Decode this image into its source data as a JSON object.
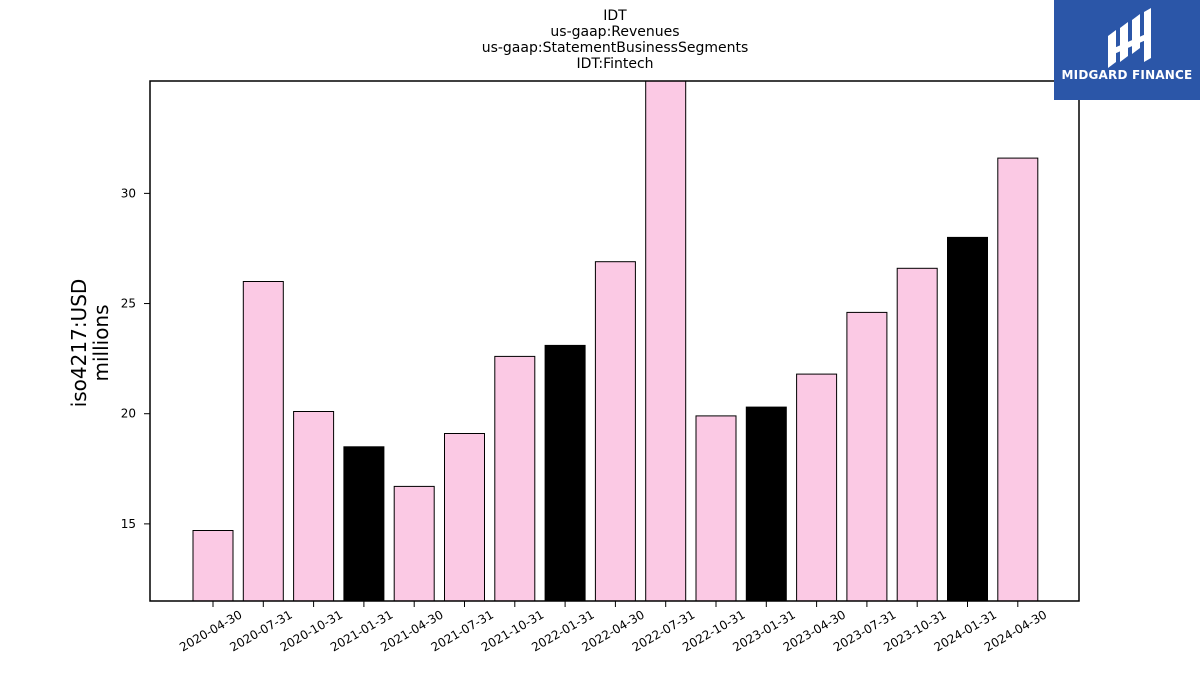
{
  "logo": {
    "text": "MIDGARD FINANCE"
  },
  "chart_data": {
    "type": "bar",
    "title_lines": [
      "IDT",
      "us-gaap:Revenues",
      "us-gaap:StatementBusinessSegments",
      "IDT:Fintech"
    ],
    "ylabel_lines": [
      "iso4217:USD",
      "millions"
    ],
    "xlabel": "",
    "ylim": [
      11.5,
      35.1
    ],
    "yticks": [
      15,
      20,
      25,
      30
    ],
    "grid": false,
    "categories": [
      "2020-04-30",
      "2020-07-31",
      "2020-10-31",
      "2021-01-31",
      "2021-04-30",
      "2021-07-31",
      "2021-10-31",
      "2022-01-31",
      "2022-04-30",
      "2022-07-31",
      "2022-10-31",
      "2023-01-31",
      "2023-04-30",
      "2023-07-31",
      "2023-10-31",
      "2024-01-31",
      "2024-04-30"
    ],
    "values": [
      14.7,
      26.0,
      20.1,
      18.5,
      16.7,
      19.1,
      22.6,
      23.1,
      26.9,
      35.1,
      19.9,
      20.3,
      21.8,
      24.6,
      26.6,
      28.0,
      31.6
    ],
    "colors": [
      "#fbc9e4",
      "#fbc9e4",
      "#fbc9e4",
      "#000000",
      "#fbc9e4",
      "#fbc9e4",
      "#fbc9e4",
      "#000000",
      "#fbc9e4",
      "#fbc9e4",
      "#fbc9e4",
      "#000000",
      "#fbc9e4",
      "#fbc9e4",
      "#fbc9e4",
      "#000000",
      "#fbc9e4"
    ]
  }
}
